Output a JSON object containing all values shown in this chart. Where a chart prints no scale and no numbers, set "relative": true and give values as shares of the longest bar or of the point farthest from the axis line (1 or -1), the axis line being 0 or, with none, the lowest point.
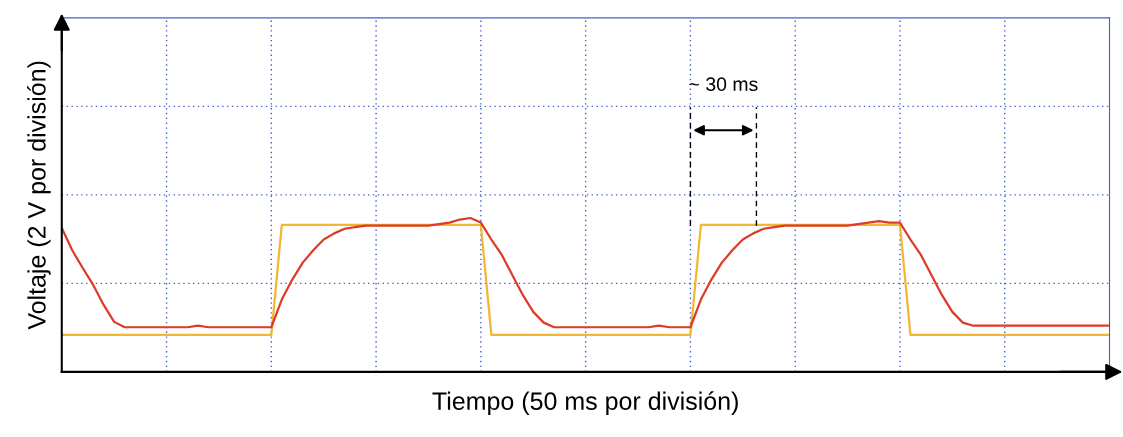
{
  "chart_data": {
    "type": "line",
    "relative": true,
    "xlabel": "Tiempo (50 ms por división)",
    "ylabel": "Voltaje (2 V por división)",
    "annotations": [
      "~ 30 ms"
    ],
    "grid": true,
    "marker": "none",
    "line_style": "solid",
    "categories": [
      null,
      null,
      null,
      null,
      null,
      null,
      null,
      null,
      null,
      null,
      null,
      null,
      null,
      null,
      null,
      null,
      null,
      null,
      null,
      null,
      null,
      null,
      null,
      null,
      null,
      null,
      null,
      null,
      null,
      null,
      null,
      null,
      null,
      null,
      null,
      null,
      null,
      null,
      null,
      null,
      null,
      null,
      null,
      null,
      null,
      null,
      null,
      null,
      null,
      null,
      null,
      null,
      null,
      null,
      null,
      null,
      null,
      null,
      null,
      null,
      null,
      null,
      null,
      null,
      null,
      null,
      null,
      null,
      null,
      null,
      null,
      null,
      null,
      null,
      null,
      null,
      null,
      null,
      null,
      null,
      null,
      null,
      null,
      null,
      null,
      null,
      null,
      null,
      null,
      null,
      null,
      null,
      null,
      null,
      null,
      null,
      null,
      null,
      null,
      null,
      null
    ],
    "series": [
      {
        "color": "#f2b630",
        "values": [
          0.24,
          0.24,
          0.24,
          0.24,
          0.24,
          0.24,
          0.24,
          0.24,
          0.24,
          0.24,
          0.24,
          0.24,
          0.24,
          0.24,
          0.24,
          0.24,
          0.24,
          0.24,
          0.24,
          0.24,
          0.24,
          0.955,
          0.955,
          0.955,
          0.955,
          0.955,
          0.955,
          0.955,
          0.955,
          0.955,
          0.955,
          0.955,
          0.955,
          0.955,
          0.955,
          0.955,
          0.955,
          0.955,
          0.955,
          0.955,
          0.955,
          0.24,
          0.24,
          0.24,
          0.24,
          0.24,
          0.24,
          0.24,
          0.24,
          0.24,
          0.24,
          0.24,
          0.24,
          0.24,
          0.24,
          0.24,
          0.24,
          0.24,
          0.24,
          0.24,
          0.24,
          0.955,
          0.955,
          0.955,
          0.955,
          0.955,
          0.955,
          0.955,
          0.955,
          0.955,
          0.955,
          0.955,
          0.955,
          0.955,
          0.955,
          0.955,
          0.955,
          0.955,
          0.955,
          0.955,
          0.955,
          0.24,
          0.24,
          0.24,
          0.24,
          0.24,
          0.24,
          0.24,
          0.24,
          0.24,
          0.24,
          0.24,
          0.24,
          0.24,
          0.24,
          0.24,
          0.24,
          0.24,
          0.24,
          0.24,
          0.24
        ]
      },
      {
        "color": "#dd3b26",
        "values": [
          0.935,
          0.79,
          0.675,
          0.565,
          0.435,
          0.325,
          0.29,
          0.29,
          0.29,
          0.29,
          0.29,
          0.29,
          0.29,
          0.3,
          0.29,
          0.29,
          0.29,
          0.29,
          0.29,
          0.29,
          0.29,
          0.47,
          0.6,
          0.71,
          0.79,
          0.86,
          0.9,
          0.93,
          0.94,
          0.95,
          0.95,
          0.95,
          0.95,
          0.95,
          0.95,
          0.95,
          0.96,
          0.97,
          0.99,
          1.0,
          0.97,
          0.86,
          0.76,
          0.63,
          0.5,
          0.39,
          0.32,
          0.29,
          0.29,
          0.29,
          0.29,
          0.29,
          0.29,
          0.29,
          0.29,
          0.29,
          0.29,
          0.3,
          0.29,
          0.29,
          0.29,
          0.47,
          0.6,
          0.71,
          0.79,
          0.86,
          0.9,
          0.93,
          0.94,
          0.95,
          0.95,
          0.95,
          0.95,
          0.95,
          0.95,
          0.95,
          0.96,
          0.97,
          0.98,
          0.97,
          0.97,
          0.86,
          0.76,
          0.63,
          0.5,
          0.39,
          0.32,
          0.3,
          0.3,
          0.3,
          0.3,
          0.3,
          0.3,
          0.3,
          0.3,
          0.3,
          0.3,
          0.3,
          0.3,
          0.3,
          0.3
        ]
      }
    ]
  }
}
